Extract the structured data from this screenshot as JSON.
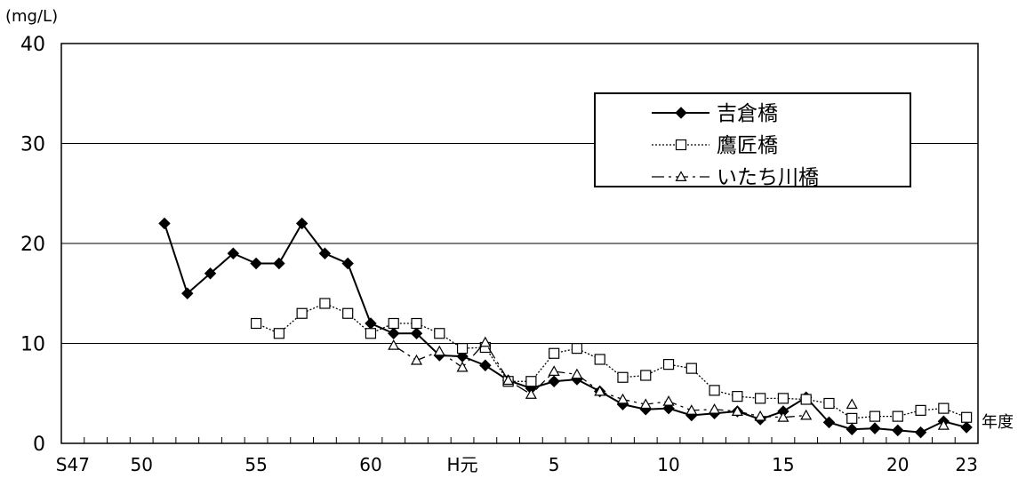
{
  "chart_data": {
    "type": "line",
    "title": "",
    "ylabel": "(mg/L)",
    "xlabel": "年度",
    "ylim": [
      0,
      40
    ],
    "yticks": [
      0,
      10,
      20,
      30,
      40
    ],
    "x_start": "S47",
    "x_end": "23",
    "xtick_labels": [
      "S47",
      "50",
      "55",
      "60",
      "H元",
      "5",
      "10",
      "15",
      "20",
      "23"
    ],
    "grid": true,
    "legend_position": "top-right",
    "categories": [
      "S47",
      "S48",
      "S49",
      "S50",
      "S51",
      "S52",
      "S53",
      "S54",
      "S55",
      "S56",
      "S57",
      "S58",
      "S59",
      "S60",
      "S61",
      "S62",
      "S63",
      "H元",
      "H2",
      "H3",
      "H4",
      "H5",
      "H6",
      "H7",
      "H8",
      "H9",
      "H10",
      "H11",
      "H12",
      "H13",
      "H14",
      "H15",
      "H16",
      "H17",
      "H18",
      "H19",
      "H20",
      "H21",
      "H22",
      "H23"
    ],
    "series": [
      {
        "name": "吉倉橋",
        "marker": "filled-diamond",
        "line_style": "solid",
        "color": "#000000",
        "values": [
          null,
          null,
          null,
          null,
          22,
          15,
          17,
          19,
          18,
          18,
          22,
          19,
          18,
          12,
          11,
          11,
          8.8,
          8.7,
          7.8,
          6.3,
          5.5,
          6.2,
          6.4,
          5.2,
          3.9,
          3.4,
          3.5,
          2.8,
          3,
          3.2,
          2.4,
          3.2,
          4.6,
          2.1,
          1.4,
          1.5,
          1.3,
          1.1,
          2.2,
          1.6
        ]
      },
      {
        "name": "鷹匠橋",
        "marker": "open-square",
        "line_style": "dotted",
        "color": "#000000",
        "values": [
          null,
          null,
          null,
          null,
          null,
          null,
          null,
          null,
          12,
          11,
          13,
          14,
          13,
          11,
          12,
          12,
          11,
          9.5,
          9.6,
          6.2,
          6.2,
          9,
          9.5,
          8.4,
          6.6,
          6.8,
          7.9,
          7.5,
          5.3,
          4.7,
          4.5,
          4.5,
          4.4,
          4,
          2.5,
          2.7,
          2.7,
          3.3,
          3.5,
          2.6
        ]
      },
      {
        "name": "いたち川橋",
        "marker": "open-triangle",
        "line_style": "dash-dot",
        "color": "#000000",
        "values": [
          null,
          null,
          null,
          null,
          null,
          null,
          null,
          null,
          null,
          null,
          null,
          null,
          null,
          null,
          9.8,
          8.3,
          9.2,
          7.6,
          10.1,
          6.3,
          4.9,
          7.2,
          6.9,
          5.2,
          4.4,
          3.9,
          4.2,
          3.3,
          3.4,
          3.2,
          2.7,
          2.6,
          2.8,
          null,
          3.9,
          null,
          null,
          null,
          1.8,
          null
        ]
      }
    ]
  }
}
